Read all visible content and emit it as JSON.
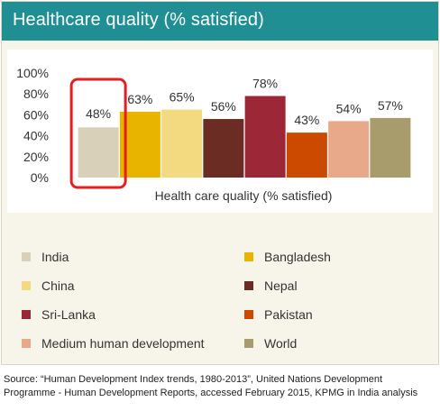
{
  "header": {
    "title": "Healthcare quality (% satisfied)"
  },
  "chart_data": {
    "type": "bar",
    "categories": [
      "India",
      "Bangladesh",
      "China",
      "Nepal",
      "Sri-Lanka",
      "Pakistan",
      "Medium human development",
      "World"
    ],
    "values": [
      48,
      63,
      65,
      56,
      78,
      43,
      54,
      57
    ],
    "data_labels": [
      "48%",
      "63%",
      "65%",
      "56%",
      "78%",
      "43%",
      "54%",
      "57%"
    ],
    "colors": [
      "#d8d0b8",
      "#e9b400",
      "#f3d97f",
      "#6b2d23",
      "#9b2737",
      "#cc4a00",
      "#e7a98a",
      "#a89c6c"
    ],
    "xlabel": "Health care quality (% satisfied)",
    "ylim": [
      0,
      100
    ],
    "yticks": [
      "0%",
      "20%",
      "40%",
      "60%",
      "80%",
      "100%"
    ],
    "highlight_color": "#e41f1f",
    "highlighted": "India",
    "legend": {
      "placement": "bottom",
      "entries": [
        "India",
        "Bangladesh",
        "China",
        "Nepal",
        "Sri-Lanka",
        "Pakistan",
        "Medium human development",
        "World"
      ]
    }
  },
  "source": "Source: “Human Development Index trends, 1980-2013”, United Nations Development Programme - Human Development Reports, accessed February 2015, KPMG in India analysis"
}
